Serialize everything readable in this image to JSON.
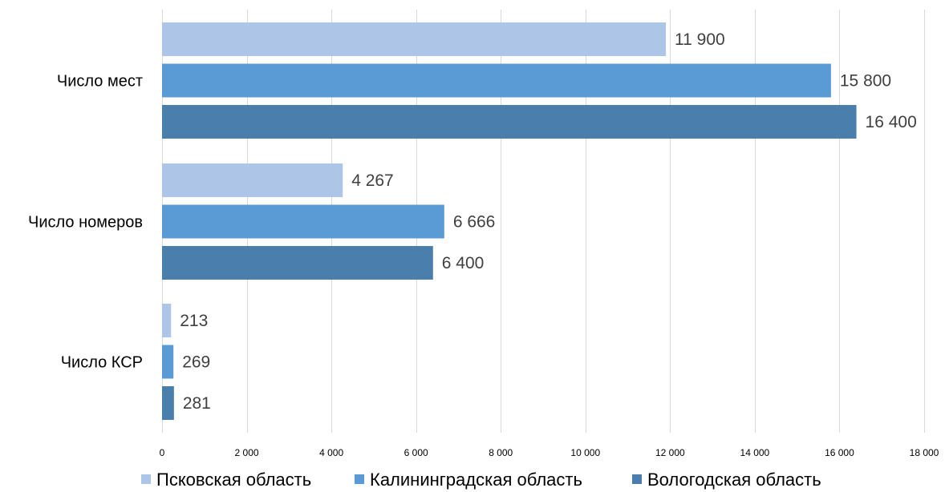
{
  "chart_data": {
    "type": "bar",
    "orientation": "horizontal",
    "categories": [
      "Число мест",
      "Число номеров",
      "Число КСР"
    ],
    "series": [
      {
        "name": "Псковская область",
        "color": "#adc5e7",
        "values": [
          11900,
          4267,
          213
        ],
        "labels": [
          "11 900",
          "4 267",
          "213"
        ]
      },
      {
        "name": "Калининградская область",
        "color": "#5b9bd5",
        "values": [
          15800,
          6666,
          269
        ],
        "labels": [
          "15 800",
          "6 666",
          "269"
        ]
      },
      {
        "name": "Вологодская область",
        "color": "#4a7ead",
        "values": [
          16400,
          6400,
          281
        ],
        "labels": [
          "16 400",
          "6 400",
          "281"
        ]
      }
    ],
    "xlim": [
      0,
      18000
    ],
    "x_ticks": [
      0,
      2000,
      4000,
      6000,
      8000,
      10000,
      12000,
      14000,
      16000,
      18000
    ],
    "x_tick_labels": [
      "0",
      "2 000",
      "4 000",
      "6 000",
      "8 000",
      "10 000",
      "12 000",
      "14 000",
      "16 000",
      "18 000"
    ],
    "title": "",
    "xlabel": "",
    "ylabel": "",
    "grid": "vertical",
    "legend_position": "bottom"
  }
}
